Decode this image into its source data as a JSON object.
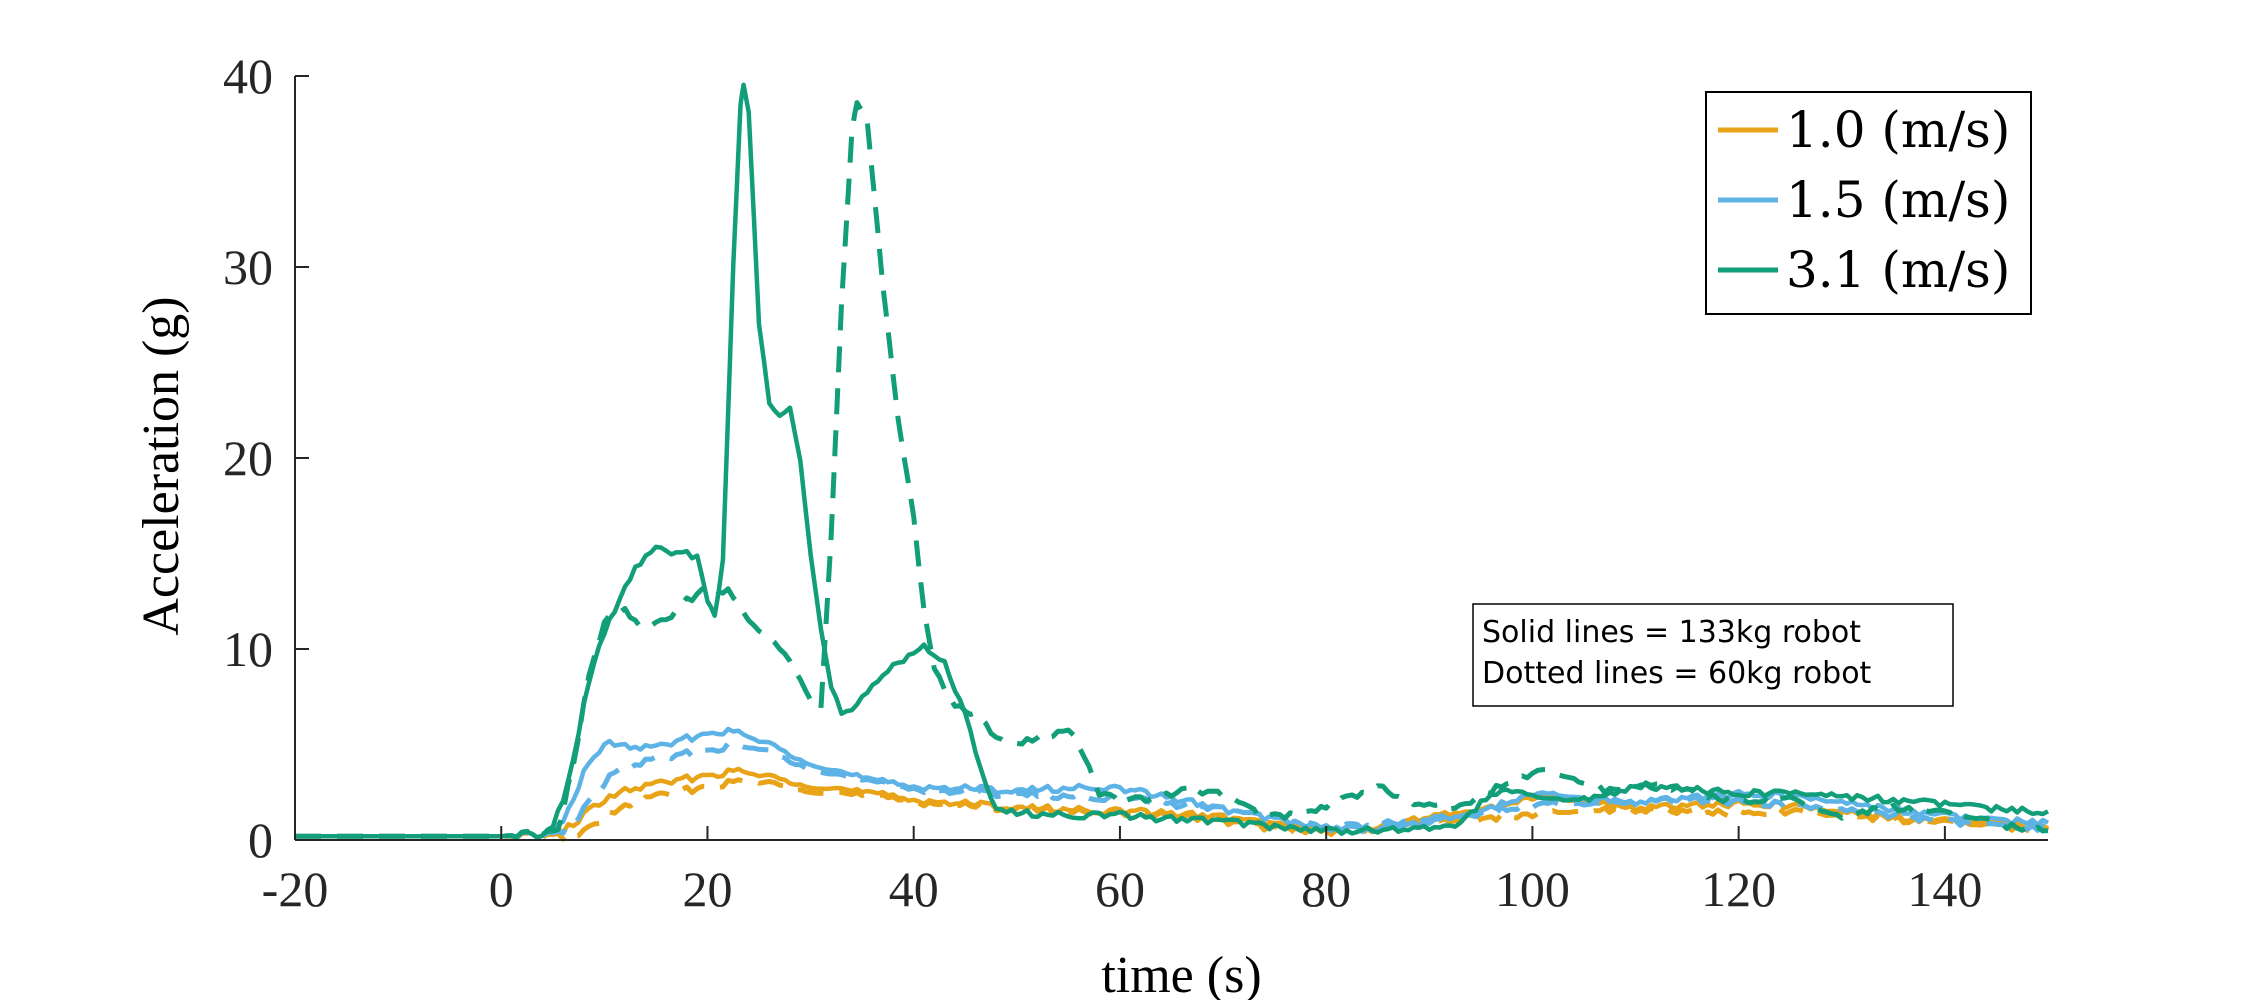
{
  "chart_data": {
    "type": "line",
    "title": "",
    "xlabel": "time (s)",
    "ylabel": "Acceleration (g)",
    "xlim": [
      -20,
      150
    ],
    "ylim": [
      0,
      40
    ],
    "x_ticks": [
      "-20",
      "0",
      "20",
      "40",
      "60",
      "80",
      "100",
      "120",
      "140"
    ],
    "y_ticks": [
      "0",
      "10",
      "20",
      "30",
      "40"
    ],
    "grid": false,
    "legend_position": "top-right",
    "legend": [
      "1.0 (m/s)",
      "1.5 (m/s)",
      "3.1 (m/s)"
    ],
    "annotation": [
      "Solid lines = 133kg robot",
      "Dotted lines = 60kg robot"
    ],
    "colors": {
      "1.0 (m/s)": "#E8A317",
      "1.5 (m/s)": "#5DB2E6",
      "3.1 (m/s)": "#119E78"
    },
    "series": [
      {
        "name": "1.0 (m/s)",
        "style": "solid",
        "points": [
          [
            -20,
            0.2
          ],
          [
            -10,
            0.2
          ],
          [
            0,
            0.2
          ],
          [
            5,
            0.3
          ],
          [
            7,
            0.8
          ],
          [
            9,
            1.8
          ],
          [
            12,
            2.6
          ],
          [
            16,
            3.0
          ],
          [
            20,
            3.4
          ],
          [
            23,
            3.6
          ],
          [
            26,
            3.3
          ],
          [
            30,
            2.9
          ],
          [
            35,
            2.5
          ],
          [
            40,
            2.1
          ],
          [
            45,
            1.9
          ],
          [
            50,
            1.7
          ],
          [
            55,
            1.6
          ],
          [
            60,
            1.5
          ],
          [
            65,
            1.4
          ],
          [
            70,
            1.2
          ],
          [
            75,
            0.8
          ],
          [
            80,
            0.5
          ],
          [
            85,
            0.7
          ],
          [
            90,
            1.2
          ],
          [
            95,
            1.6
          ],
          [
            100,
            2.2
          ],
          [
            105,
            2.0
          ],
          [
            110,
            1.7
          ],
          [
            115,
            1.8
          ],
          [
            120,
            1.9
          ],
          [
            125,
            1.8
          ],
          [
            130,
            1.5
          ],
          [
            135,
            1.2
          ],
          [
            140,
            1.0
          ],
          [
            145,
            0.8
          ],
          [
            150,
            0.6
          ]
        ]
      },
      {
        "name": "1.0 (m/s)",
        "style": "dashed",
        "points": [
          [
            -20,
            0.2
          ],
          [
            0,
            0.2
          ],
          [
            6,
            0.2
          ],
          [
            8,
            0.4
          ],
          [
            10,
            1.2
          ],
          [
            13,
            2.0
          ],
          [
            17,
            2.5
          ],
          [
            21,
            2.9
          ],
          [
            24,
            3.1
          ],
          [
            28,
            2.8
          ],
          [
            32,
            2.5
          ],
          [
            37,
            2.2
          ],
          [
            42,
            1.9
          ],
          [
            48,
            1.7
          ],
          [
            55,
            1.5
          ],
          [
            60,
            1.4
          ],
          [
            65,
            1.3
          ],
          [
            70,
            1.0
          ],
          [
            75,
            0.6
          ],
          [
            80,
            0.4
          ],
          [
            85,
            0.6
          ],
          [
            90,
            0.9
          ],
          [
            95,
            1.1
          ],
          [
            100,
            1.3
          ],
          [
            105,
            1.5
          ],
          [
            110,
            1.6
          ],
          [
            115,
            1.5
          ],
          [
            120,
            1.4
          ],
          [
            125,
            1.5
          ],
          [
            130,
            1.3
          ],
          [
            135,
            1.1
          ],
          [
            140,
            0.9
          ],
          [
            145,
            0.7
          ],
          [
            150,
            0.5
          ]
        ]
      },
      {
        "name": "1.5 (m/s)",
        "style": "solid",
        "points": [
          [
            -20,
            0.2
          ],
          [
            0,
            0.2
          ],
          [
            5,
            0.3
          ],
          [
            6.5,
            1.5
          ],
          [
            8,
            3.5
          ],
          [
            10,
            5.1
          ],
          [
            12,
            4.9
          ],
          [
            15,
            4.8
          ],
          [
            18,
            5.3
          ],
          [
            21,
            5.7
          ],
          [
            23,
            5.6
          ],
          [
            26,
            5.0
          ],
          [
            29,
            4.3
          ],
          [
            32,
            3.7
          ],
          [
            36,
            3.1
          ],
          [
            40,
            2.8
          ],
          [
            45,
            2.7
          ],
          [
            50,
            2.6
          ],
          [
            55,
            2.7
          ],
          [
            58,
            2.8
          ],
          [
            62,
            2.5
          ],
          [
            66,
            2.1
          ],
          [
            70,
            1.6
          ],
          [
            75,
            1.1
          ],
          [
            80,
            0.6
          ],
          [
            85,
            0.6
          ],
          [
            90,
            0.9
          ],
          [
            95,
            1.5
          ],
          [
            100,
            2.4
          ],
          [
            105,
            2.2
          ],
          [
            110,
            2.0
          ],
          [
            115,
            2.2
          ],
          [
            120,
            2.4
          ],
          [
            125,
            2.3
          ],
          [
            130,
            2.0
          ],
          [
            135,
            1.6
          ],
          [
            140,
            1.3
          ],
          [
            145,
            1.0
          ],
          [
            150,
            0.9
          ]
        ]
      },
      {
        "name": "1.5 (m/s)",
        "style": "dashed",
        "points": [
          [
            -20,
            0.2
          ],
          [
            0,
            0.2
          ],
          [
            5.5,
            0.3
          ],
          [
            7,
            0.9
          ],
          [
            9,
            2.3
          ],
          [
            11,
            3.6
          ],
          [
            14,
            4.1
          ],
          [
            18,
            4.5
          ],
          [
            22,
            4.9
          ],
          [
            25,
            4.8
          ],
          [
            28,
            4.2
          ],
          [
            32,
            3.5
          ],
          [
            36,
            3.0
          ],
          [
            40,
            2.7
          ],
          [
            45,
            2.5
          ],
          [
            50,
            2.4
          ],
          [
            55,
            2.3
          ],
          [
            60,
            2.2
          ],
          [
            65,
            1.9
          ],
          [
            70,
            1.6
          ],
          [
            75,
            1.1
          ],
          [
            80,
            0.7
          ],
          [
            85,
            0.8
          ],
          [
            90,
            1.1
          ],
          [
            95,
            1.4
          ],
          [
            100,
            1.8
          ],
          [
            105,
            1.9
          ],
          [
            110,
            2.0
          ],
          [
            115,
            2.1
          ],
          [
            120,
            2.0
          ],
          [
            125,
            1.8
          ],
          [
            130,
            1.6
          ],
          [
            135,
            1.3
          ],
          [
            140,
            1.0
          ],
          [
            145,
            0.7
          ],
          [
            150,
            0.6
          ]
        ]
      },
      {
        "name": "3.1 (m/s)",
        "style": "solid",
        "points": [
          [
            -20,
            0.2
          ],
          [
            0,
            0.2
          ],
          [
            4,
            0.3
          ],
          [
            5,
            0.6
          ],
          [
            6.5,
            3.0
          ],
          [
            8,
            7.0
          ],
          [
            9.5,
            10.3
          ],
          [
            11,
            12.0
          ],
          [
            13,
            14.3
          ],
          [
            15,
            15.2
          ],
          [
            17,
            15.0
          ],
          [
            19,
            14.9
          ],
          [
            20,
            12.5
          ],
          [
            20.7,
            11.9
          ],
          [
            21.5,
            14.5
          ],
          [
            22.5,
            30.0
          ],
          [
            23.2,
            38.5
          ],
          [
            23.5,
            39.6
          ],
          [
            24,
            38.0
          ],
          [
            25,
            27.0
          ],
          [
            26,
            23.0
          ],
          [
            27,
            22.3
          ],
          [
            28,
            22.8
          ],
          [
            29,
            20.0
          ],
          [
            30,
            15.0
          ],
          [
            31,
            11.0
          ],
          [
            32,
            8.0
          ],
          [
            33,
            6.6
          ],
          [
            34,
            6.7
          ],
          [
            36,
            8.0
          ],
          [
            38,
            9.2
          ],
          [
            40,
            9.8
          ],
          [
            41,
            10.2
          ],
          [
            43,
            9.2
          ],
          [
            45,
            6.5
          ],
          [
            47,
            3.0
          ],
          [
            48,
            1.6
          ],
          [
            50,
            1.4
          ],
          [
            55,
            1.3
          ],
          [
            60,
            1.3
          ],
          [
            65,
            1.1
          ],
          [
            70,
            1.0
          ],
          [
            75,
            0.7
          ],
          [
            80,
            0.5
          ],
          [
            85,
            0.5
          ],
          [
            90,
            0.6
          ],
          [
            93,
            0.9
          ],
          [
            96,
            2.4
          ],
          [
            98,
            2.6
          ],
          [
            100,
            2.2
          ],
          [
            105,
            2.1
          ],
          [
            110,
            2.8
          ],
          [
            115,
            2.7
          ],
          [
            120,
            2.4
          ],
          [
            125,
            2.5
          ],
          [
            130,
            2.3
          ],
          [
            135,
            2.1
          ],
          [
            140,
            1.9
          ],
          [
            145,
            1.6
          ],
          [
            150,
            1.5
          ]
        ]
      },
      {
        "name": "3.1 (m/s)",
        "style": "dashed",
        "points": [
          [
            -20,
            0.2
          ],
          [
            0,
            0.2
          ],
          [
            5.5,
            0.4
          ],
          [
            7,
            4.0
          ],
          [
            8.5,
            8.5
          ],
          [
            10,
            11.5
          ],
          [
            12,
            12.0
          ],
          [
            14,
            11.0
          ],
          [
            16,
            11.5
          ],
          [
            18,
            12.5
          ],
          [
            20,
            13.3
          ],
          [
            22,
            13.0
          ],
          [
            24,
            11.5
          ],
          [
            26,
            10.5
          ],
          [
            28,
            9.5
          ],
          [
            30,
            7.5
          ],
          [
            31,
            7.0
          ],
          [
            32,
            16.0
          ],
          [
            33,
            28.0
          ],
          [
            34,
            37.0
          ],
          [
            34.5,
            38.6
          ],
          [
            35.5,
            37.5
          ],
          [
            37,
            29.0
          ],
          [
            38.5,
            22.0
          ],
          [
            40,
            17.0
          ],
          [
            41,
            12.0
          ],
          [
            42,
            9.0
          ],
          [
            44,
            7.0
          ],
          [
            46,
            6.5
          ],
          [
            48,
            5.5
          ],
          [
            50,
            5.0
          ],
          [
            53,
            5.5
          ],
          [
            55,
            5.8
          ],
          [
            57,
            4.0
          ],
          [
            58,
            2.5
          ],
          [
            60,
            2.0
          ],
          [
            63,
            2.2
          ],
          [
            66,
            2.6
          ],
          [
            70,
            2.4
          ],
          [
            74,
            1.2
          ],
          [
            78,
            1.4
          ],
          [
            82,
            2.2
          ],
          [
            85,
            2.8
          ],
          [
            88,
            2.0
          ],
          [
            92,
            1.6
          ],
          [
            95,
            2.3
          ],
          [
            98,
            3.1
          ],
          [
            101,
            3.6
          ],
          [
            104,
            3.2
          ],
          [
            107,
            2.6
          ],
          [
            111,
            2.9
          ],
          [
            114,
            2.7
          ],
          [
            118,
            2.2
          ],
          [
            121,
            2.0
          ],
          [
            124,
            2.3
          ],
          [
            127,
            1.8
          ],
          [
            130,
            1.2
          ],
          [
            133,
            1.6
          ],
          [
            136,
            1.7
          ],
          [
            140,
            1.4
          ],
          [
            144,
            1.0
          ],
          [
            147,
            0.6
          ],
          [
            150,
            0.5
          ]
        ]
      }
    ]
  }
}
